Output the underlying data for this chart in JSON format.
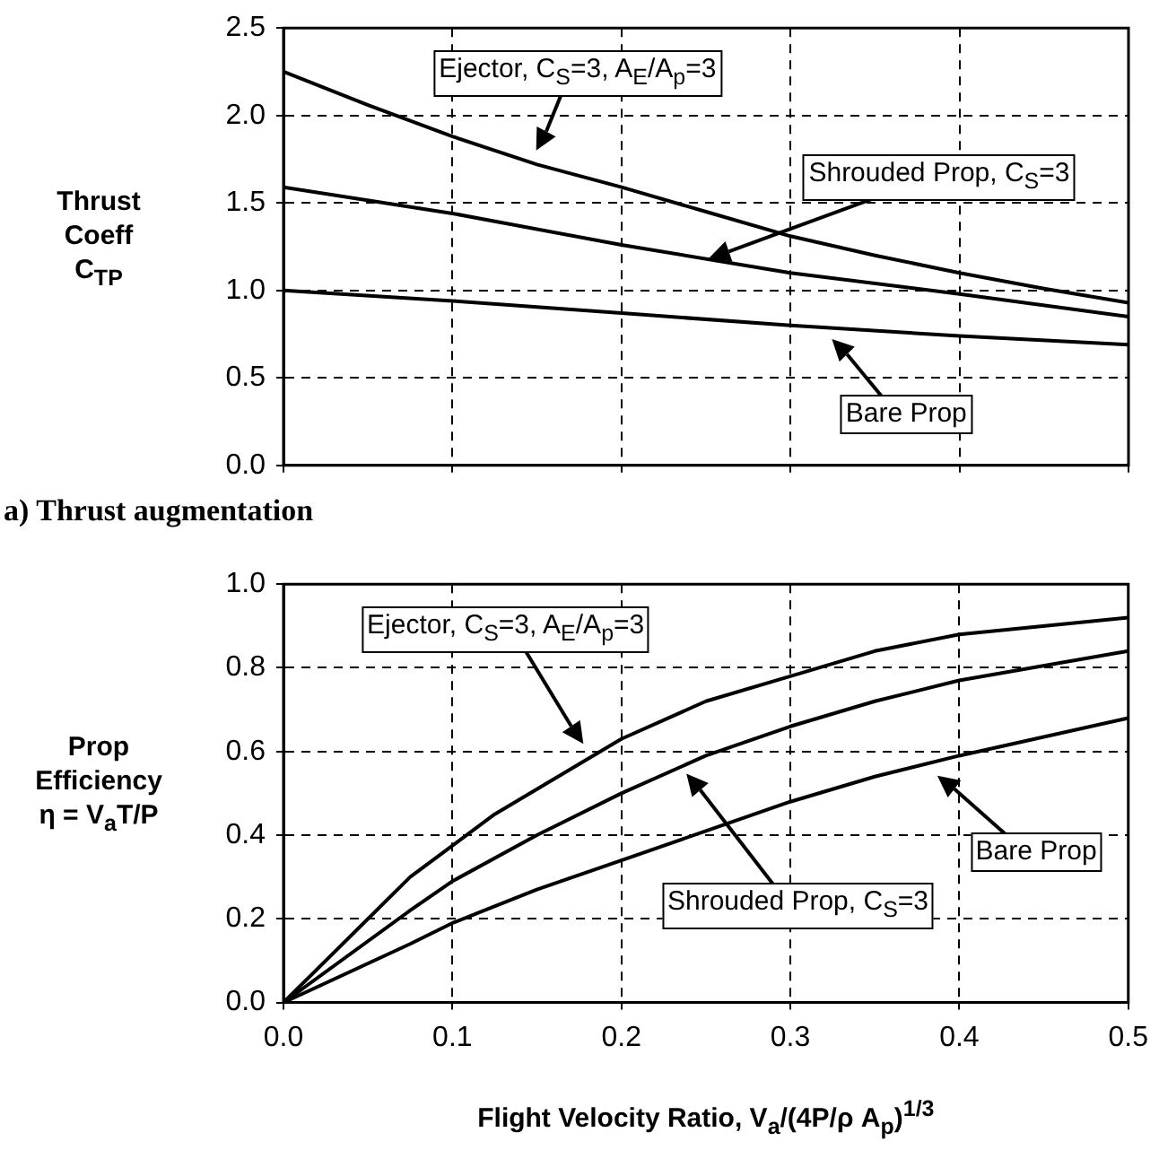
{
  "chart_data": [
    {
      "type": "line",
      "ylabel": "Thrust\nCoeff\nC$_{TP}$",
      "xlim": [
        0,
        0.5
      ],
      "xticks": [
        0,
        0.1,
        0.2,
        0.3,
        0.4,
        0.5
      ],
      "ylim": [
        0,
        2.5
      ],
      "yticks": [
        {
          "value": 0,
          "label": "0.0"
        },
        0.5,
        {
          "value": 1,
          "label": "1.0"
        },
        1.5,
        {
          "value": 2,
          "label": "2.0"
        },
        2.5
      ],
      "tick_labels": "y",
      "grid": true,
      "legend": false,
      "marker": "none",
      "series": [
        {
          "color": "#000000",
          "x": [
            0,
            0.05,
            0.1,
            0.15,
            0.2,
            0.25,
            0.3,
            0.35,
            0.4,
            0.45,
            0.5
          ],
          "values": [
            2.25,
            2.06,
            1.88,
            1.72,
            1.59,
            1.45,
            1.31,
            1.2,
            1.1,
            1.01,
            0.93
          ]
        },
        {
          "color": "#000000",
          "x": [
            0,
            0.1,
            0.2,
            0.3,
            0.4,
            0.5
          ],
          "values": [
            1.59,
            1.44,
            1.26,
            1.1,
            0.98,
            0.85
          ]
        },
        {
          "color": "#000000",
          "x": [
            0,
            0.1,
            0.2,
            0.3,
            0.4,
            0.5
          ],
          "values": [
            1.0,
            0.94,
            0.87,
            0.8,
            0.74,
            0.69
          ]
        }
      ],
      "annotations": [
        "Ejector, C$_{S}$=3, A$_{E}$/A$_{p}$=3",
        "Shrouded Prop, C$_{S}$=3",
        "Bare Prop",
        "a) Thrust augmentation"
      ]
    },
    {
      "type": "line",
      "xlabel": "Flight Velocity Ratio,  V$_{a}$/(4P/ρ A$_{p}$)$^{1/3}$",
      "ylabel": "Prop\nEfficiency\nη = V$_{a}$T/P",
      "xlim": [
        0,
        0.5
      ],
      "xticks": [
        {
          "value": 0,
          "label": "0.0"
        },
        0.1,
        0.2,
        0.3,
        0.4,
        0.5
      ],
      "ylim": [
        0,
        1
      ],
      "yticks": [
        {
          "value": 0,
          "label": "0.0"
        },
        0.2,
        0.4,
        0.6,
        0.8,
        {
          "value": 1,
          "label": "1.0"
        }
      ],
      "grid": true,
      "legend": false,
      "marker": "none",
      "series": [
        {
          "color": "#000000",
          "x": [
            0,
            0.075,
            0.125,
            0.2,
            0.25,
            0.3,
            0.35,
            0.4,
            0.5
          ],
          "values": [
            0,
            0.3,
            0.45,
            0.63,
            0.72,
            0.78,
            0.84,
            0.88,
            0.92
          ]
        },
        {
          "color": "#000000",
          "x": [
            0,
            0.075,
            0.1,
            0.15,
            0.2,
            0.25,
            0.3,
            0.35,
            0.4,
            0.5
          ],
          "values": [
            0,
            0.22,
            0.29,
            0.4,
            0.5,
            0.59,
            0.66,
            0.72,
            0.77,
            0.84
          ]
        },
        {
          "color": "#000000",
          "x": [
            0,
            0.075,
            0.1,
            0.15,
            0.2,
            0.25,
            0.3,
            0.35,
            0.4,
            0.5
          ],
          "values": [
            0,
            0.14,
            0.19,
            0.27,
            0.34,
            0.41,
            0.48,
            0.54,
            0.59,
            0.68
          ]
        }
      ],
      "annotations": [
        "Ejector, C$_{S}$=3, A$_{E}$/A$_{p}$=3",
        "Shrouded Prop, C$_{S}$=3",
        "Bare Prop"
      ]
    }
  ]
}
